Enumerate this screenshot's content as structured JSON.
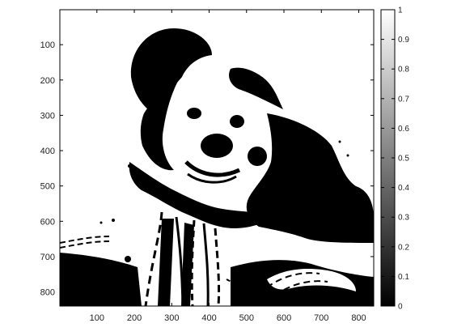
{
  "figure": {
    "colormap": "gray",
    "x_ticks": [
      100,
      200,
      300,
      400,
      500,
      600,
      700,
      800
    ],
    "y_ticks": [
      100,
      200,
      300,
      400,
      500,
      600,
      700,
      800
    ],
    "x_range": [
      1,
      840
    ],
    "y_range": [
      1,
      840
    ],
    "colorbar": {
      "ticks": [
        "0",
        "0.1",
        "0.2",
        "0.3",
        "0.4",
        "0.5",
        "0.6",
        "0.7",
        "0.8",
        "0.9",
        "1"
      ],
      "range": [
        0,
        1
      ]
    }
  }
}
